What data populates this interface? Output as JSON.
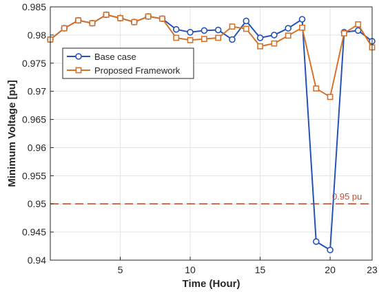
{
  "chart_data": {
    "type": "line",
    "xlabel": "Time (Hour)",
    "ylabel": "Minimum Voltage  [pu]",
    "xlim": [
      0,
      23
    ],
    "ylim": [
      0.94,
      0.985
    ],
    "x_ticks": [
      5,
      10,
      15,
      20,
      23
    ],
    "y_ticks": [
      0.94,
      0.945,
      0.95,
      0.955,
      0.96,
      0.965,
      0.97,
      0.975,
      0.98,
      0.985
    ],
    "y_tick_labels": [
      "0.94",
      "0.945",
      "0.95",
      "0.955",
      "0.96",
      "0.965",
      "0.97",
      "0.975",
      "0.98",
      "0.985"
    ],
    "x": [
      0,
      1,
      2,
      3,
      4,
      5,
      6,
      7,
      8,
      9,
      10,
      11,
      12,
      13,
      14,
      15,
      16,
      17,
      18,
      19,
      20,
      21,
      22,
      23
    ],
    "series": [
      {
        "name": "Base case",
        "color": "#2453b5",
        "marker": "circle",
        "values": [
          0.9792,
          0.9812,
          0.9826,
          0.9821,
          0.9836,
          0.983,
          0.9823,
          0.9833,
          0.9829,
          0.981,
          0.9805,
          0.9808,
          0.9809,
          0.9792,
          0.9825,
          0.9795,
          0.98,
          0.9812,
          0.9828,
          0.9433,
          0.9418,
          0.9805,
          0.9808,
          0.9789
        ]
      },
      {
        "name": "Proposed Framework",
        "color": "#d5732a",
        "marker": "square",
        "values": [
          0.9792,
          0.9812,
          0.9826,
          0.9821,
          0.9836,
          0.983,
          0.9823,
          0.9833,
          0.9829,
          0.9795,
          0.9791,
          0.9793,
          0.9795,
          0.9815,
          0.9811,
          0.978,
          0.9785,
          0.9799,
          0.9813,
          0.9705,
          0.969,
          0.9803,
          0.9819,
          0.9778
        ]
      }
    ],
    "reference_line": {
      "value": 0.95,
      "label": "0.95 pu",
      "color": "#c1502e",
      "style": "dashed"
    },
    "legend_position": "upper-left",
    "grid": true
  }
}
